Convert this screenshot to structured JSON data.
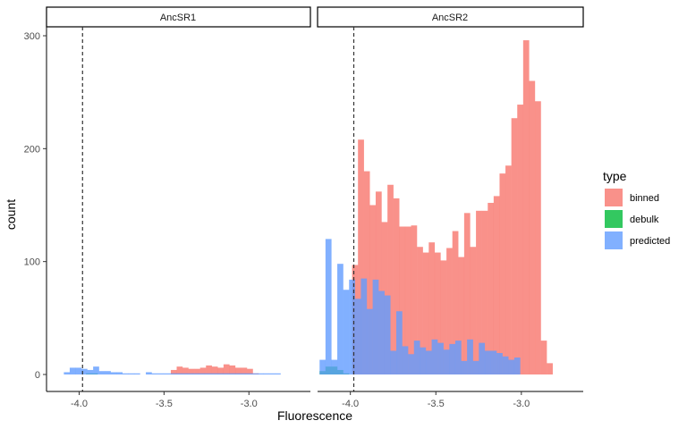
{
  "chart_data": {
    "type": "histogram",
    "xlabel": "Fluorescence",
    "ylabel": "count",
    "ylim": [
      0,
      300
    ],
    "y_ticks": [
      "0",
      "100",
      "200",
      "300"
    ],
    "x_ticks": [
      "-4.0",
      "-3.5",
      "-3.0"
    ],
    "x_tick_values": [
      -4.0,
      -3.5,
      -3.0
    ],
    "xlim": [
      -4.15,
      -2.68
    ],
    "vline_x": -3.98,
    "grid": false,
    "legend_position": "right",
    "legend": {
      "title": "type",
      "entries": [
        {
          "name": "binned",
          "color": "#F8766D"
        },
        {
          "name": "debulk",
          "color": "#00BA38"
        },
        {
          "name": "predicted",
          "color": "#619CFF"
        }
      ]
    },
    "facets": [
      {
        "label": "AncSR1",
        "series": [
          {
            "name": "binned",
            "x0": -3.46,
            "bin_width": 0.0345,
            "values": [
              4,
              7,
              6,
              5,
              5,
              6,
              8,
              7,
              6,
              9,
              8,
              6,
              6,
              5,
              1
            ]
          },
          {
            "name": "debulk",
            "x0": -3.96,
            "bin_width": 0.0345,
            "values": [
              1,
              1
            ]
          },
          {
            "name": "predicted",
            "x0": -4.09,
            "bin_width": 0.0345,
            "values": [
              2,
              6,
              6,
              5,
              4,
              7,
              3,
              3,
              2,
              2,
              1,
              1,
              1,
              0,
              2,
              1,
              1,
              1,
              1,
              1,
              1,
              1,
              1,
              1,
              1,
              1,
              1,
              1,
              1,
              1,
              1,
              1,
              1,
              1,
              1,
              1,
              1
            ]
          }
        ]
      },
      {
        "label": "AncSR2",
        "series": [
          {
            "name": "binned",
            "x0": -3.99,
            "bin_width": 0.0345,
            "values": [
              97,
              208,
              180,
              150,
              162,
              135,
              168,
              156,
              131,
              131,
              132,
              113,
              108,
              117,
              108,
              101,
              112,
              127,
              104,
              143,
              113,
              145,
              145,
              152,
              158,
              178,
              185,
              227,
              239,
              296,
              260,
              242,
              30,
              10
            ]
          },
          {
            "name": "debulk",
            "x0": -4.18,
            "bin_width": 0.0345,
            "values": [
              3,
              7,
              7,
              4,
              1
            ]
          },
          {
            "name": "predicted",
            "x0": -4.18,
            "bin_width": 0.0345,
            "values": [
              13,
              120,
              13,
              98,
              75,
              84,
              67,
              85,
              58,
              84,
              74,
              70,
              21,
              56,
              25,
              18,
              30,
              24,
              21,
              31,
              28,
              22,
              27,
              30,
              12,
              31,
              12,
              28,
              21,
              21,
              19,
              16,
              13,
              15
            ]
          }
        ]
      }
    ]
  }
}
